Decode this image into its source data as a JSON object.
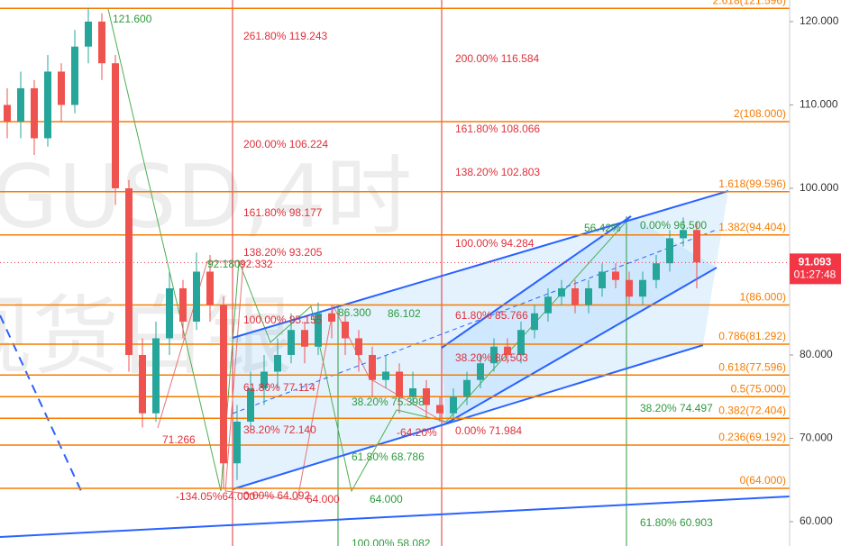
{
  "chart_data": {
    "type": "candlestick",
    "watermark": [
      "GUSD,4时",
      "现货白银"
    ],
    "ylim": [
      57.08,
      122.59
    ],
    "yticks": [
      {
        "value": 120,
        "label": "120.000"
      },
      {
        "value": 110,
        "label": "110.000"
      },
      {
        "value": 100,
        "label": "100.000"
      },
      {
        "value": 90,
        "label": "90.000"
      },
      {
        "value": 80,
        "label": "80.000"
      },
      {
        "value": 70,
        "label": "70.000"
      },
      {
        "value": 60,
        "label": "60.000"
      }
    ],
    "up_color": "#26a69a",
    "down_color": "#ef5350",
    "open": [
      110,
      108,
      112,
      106,
      114,
      110,
      117,
      120,
      115,
      100,
      80,
      73,
      82,
      88,
      84,
      90,
      86,
      67,
      72,
      76,
      78,
      80,
      83,
      81,
      85,
      84,
      82,
      80,
      77,
      78,
      75,
      76,
      74,
      73,
      75,
      77,
      79,
      81,
      80,
      83,
      85,
      87,
      88,
      86,
      88,
      90,
      89,
      87,
      89,
      91,
      94,
      95
    ],
    "high": [
      112,
      114,
      113,
      116,
      115,
      119,
      121.6,
      121,
      116,
      101,
      82,
      84,
      90,
      89,
      92.3,
      92,
      87,
      74,
      78,
      80,
      82,
      85,
      84,
      86.3,
      86,
      85,
      83,
      81,
      80,
      79,
      78,
      77,
      75,
      76,
      78,
      80,
      82,
      82,
      84,
      86,
      88,
      89,
      89,
      89,
      91,
      91,
      90,
      90,
      92,
      95,
      96.5,
      96
    ],
    "low": [
      106,
      106,
      104,
      105,
      108,
      109,
      115,
      113,
      98,
      78,
      71.3,
      72,
      80,
      82,
      83,
      84,
      64,
      65,
      71,
      74,
      76,
      79,
      79,
      80,
      82,
      80,
      78,
      75,
      76,
      73,
      74,
      72.5,
      72,
      72,
      74,
      76,
      78,
      79,
      79,
      82,
      84,
      86,
      85,
      85,
      87,
      88,
      86,
      86,
      88,
      90,
      93,
      88
    ],
    "close": [
      108,
      112,
      106,
      114,
      110,
      117,
      120,
      115,
      100,
      80,
      73,
      82,
      88,
      84,
      90,
      86,
      67,
      72,
      76,
      78,
      80,
      83,
      81,
      85,
      84,
      82,
      80,
      77,
      78,
      75,
      76,
      74,
      73,
      75,
      77,
      79,
      81,
      80,
      83,
      85,
      87,
      88,
      86,
      88,
      90,
      89,
      87,
      89,
      91,
      94,
      95,
      91.1
    ],
    "fib_color": "#f57c00",
    "fib_levels": [
      {
        "value": 121.596,
        "label": "2.618(121.596)"
      },
      {
        "value": 108,
        "label": "2(108.000)"
      },
      {
        "value": 99.596,
        "label": "1.618(99.596)"
      },
      {
        "value": 94.404,
        "label": "1.382(94.404)"
      },
      {
        "value": 86,
        "label": "1(86.000)"
      },
      {
        "value": 81.292,
        "label": "0.786(81.292)"
      },
      {
        "value": 77.596,
        "label": "0.618(77.596)"
      },
      {
        "value": 75,
        "label": "0.5(75.000)"
      },
      {
        "value": 72.404,
        "label": "0.382(72.404)"
      },
      {
        "value": 69.192,
        "label": "0.236(69.192)"
      },
      {
        "value": 64,
        "label": "0(64.000)"
      }
    ],
    "last_price": {
      "value": 91.093,
      "label": "91.093",
      "countdown": "01:27:48",
      "color": "#f23645"
    },
    "annotations": [
      {
        "text": "121.600",
        "color": "#2e9a3e"
      },
      {
        "text": "261.80% 119.243",
        "color": "#e0303a"
      },
      {
        "text": "200.00% 116.584",
        "color": "#e0303a"
      },
      {
        "text": "161.80% 108.066",
        "color": "#e0303a"
      },
      {
        "text": "200.00% 106.224",
        "color": "#e0303a"
      },
      {
        "text": "138.20% 102.803",
        "color": "#e0303a"
      },
      {
        "text": "161.80% 98.177",
        "color": "#e0303a"
      },
      {
        "text": "56.42%",
        "color": "#2e9a3e"
      },
      {
        "text": "0.00% 96.500",
        "color": "#2e9a3e"
      },
      {
        "text": "100.00% 94.284",
        "color": "#e0303a"
      },
      {
        "text": "138.20% 93.205",
        "color": "#e0303a"
      },
      {
        "text": "92.180",
        "color": "#2e9a3e"
      },
      {
        "text": "92.332",
        "color": "#e0303a"
      },
      {
        "text": "100.00% 85.155",
        "color": "#e0303a"
      },
      {
        "text": "86.300",
        "color": "#2e9a3e"
      },
      {
        "text": "86.102",
        "color": "#2e9a3e"
      },
      {
        "text": "61.80% 85.766",
        "color": "#e0303a"
      },
      {
        "text": "38.20% 80.503",
        "color": "#e0303a"
      },
      {
        "text": "61.80% 77.114",
        "color": "#e0303a"
      },
      {
        "text": "38.20% 75.398",
        "color": "#2e9a3e"
      },
      {
        "text": "38.20% 74.497",
        "color": "#2e9a3e"
      },
      {
        "text": "71.266",
        "color": "#e0303a"
      },
      {
        "text": "38.20% 72.140",
        "color": "#e0303a"
      },
      {
        "text": "-64.20%",
        "color": "#e0303a"
      },
      {
        "text": "0.00% 71.984",
        "color": "#e0303a"
      },
      {
        "text": "61.80% 68.786",
        "color": "#2e9a3e"
      },
      {
        "text": "-134.05%64.000",
        "color": "#e0303a"
      },
      {
        "text": "0.00% 64.092",
        "color": "#e0303a"
      },
      {
        "text": "64.000",
        "color": "#e0303a"
      },
      {
        "text": "64.000",
        "color": "#2e9a3e"
      },
      {
        "text": "61.80% 60.903",
        "color": "#2e9a3e"
      },
      {
        "text": "100.00% 58.082",
        "color": "#2e9a3e"
      }
    ]
  }
}
